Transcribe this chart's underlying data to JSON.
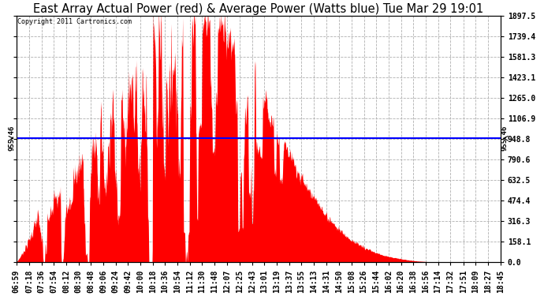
{
  "title": "East Array Actual Power (red) & Average Power (Watts blue) Tue Mar 29 19:01",
  "copyright": "Copyright 2011 Cartronics.com",
  "avg_power": 955.46,
  "y_max": 1897.5,
  "y_min": 0.0,
  "y_ticks": [
    0.0,
    158.1,
    316.3,
    474.4,
    632.5,
    790.6,
    948.8,
    1106.9,
    1265.0,
    1423.1,
    1581.3,
    1739.4,
    1897.5
  ],
  "y_tick_labels": [
    "0.0",
    "158.1",
    "316.3",
    "474.4",
    "632.5",
    "790.6",
    "948.8",
    "1106.9",
    "1265.0",
    "1423.1",
    "1581.3",
    "1739.4",
    "1897.5"
  ],
  "x_tick_labels": [
    "06:59",
    "07:18",
    "07:36",
    "07:54",
    "08:12",
    "08:30",
    "08:48",
    "09:06",
    "09:24",
    "09:42",
    "10:00",
    "10:18",
    "10:36",
    "10:54",
    "11:12",
    "11:30",
    "11:48",
    "12:07",
    "12:25",
    "12:43",
    "13:01",
    "13:19",
    "13:37",
    "13:55",
    "14:13",
    "14:31",
    "14:50",
    "15:08",
    "15:26",
    "15:44",
    "16:02",
    "16:20",
    "16:38",
    "16:56",
    "17:14",
    "17:32",
    "17:51",
    "18:09",
    "18:27",
    "18:45"
  ],
  "bg_color": "#ffffff",
  "fill_color": "#ff0000",
  "line_color": "#0000ff",
  "grid_color": "#b0b0b0",
  "title_fontsize": 10.5,
  "tick_fontsize": 7,
  "avg_label": "955.46"
}
